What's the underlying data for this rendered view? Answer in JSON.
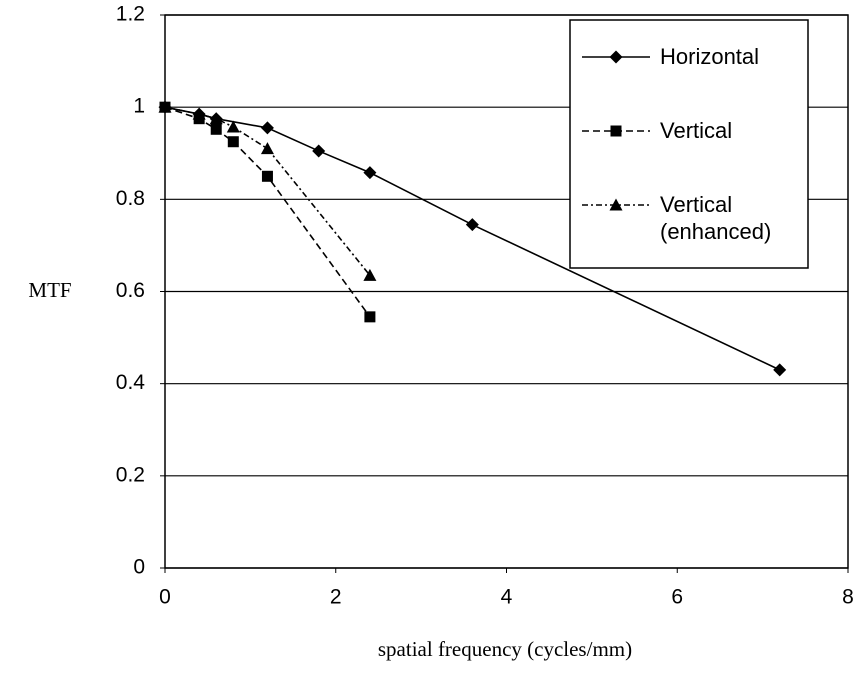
{
  "chart_data": {
    "type": "line",
    "xlabel": "spatial frequency (cycles/mm)",
    "ylabel": "MTF",
    "xlim": [
      0,
      8
    ],
    "xticks": [
      0,
      2,
      4,
      6,
      8
    ],
    "ylim": [
      0,
      1.2
    ],
    "yticks": [
      0,
      0.2,
      0.4,
      0.6,
      0.8,
      1,
      1.2
    ],
    "grid": true,
    "legend": "upper right",
    "series": [
      {
        "name": "Horizontal",
        "color": "#000000",
        "line_style": "solid",
        "marker": "diamond",
        "x": [
          0,
          0.4,
          0.6,
          1.2,
          1.8,
          2.4,
          3.6,
          7.2
        ],
        "values": [
          1,
          0.985,
          0.975,
          0.955,
          0.905,
          0.858,
          0.745,
          0.43
        ]
      },
      {
        "name": "Vertical",
        "color": "#000000",
        "line_style": "dashed",
        "marker": "square",
        "x": [
          0,
          0.4,
          0.6,
          0.8,
          1.2,
          2.4
        ],
        "values": [
          1,
          0.975,
          0.952,
          0.925,
          0.85,
          0.545
        ]
      },
      {
        "name": "Vertical (enhanced)",
        "color": "#000000",
        "line_style": "dashdot",
        "marker": "triangle",
        "x": [
          0,
          0.4,
          0.6,
          0.8,
          1.2,
          2.4
        ],
        "values": [
          1,
          0.985,
          0.975,
          0.957,
          0.91,
          0.635
        ]
      }
    ]
  }
}
